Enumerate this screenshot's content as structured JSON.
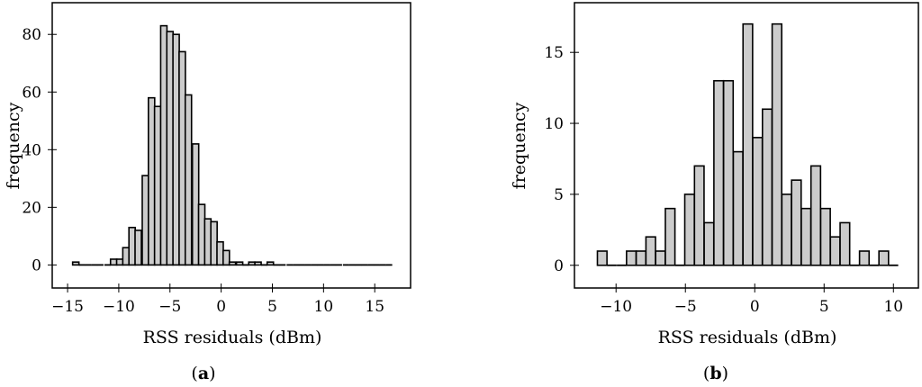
{
  "chart_data": [
    {
      "type": "bar",
      "panel_label": "a",
      "xlabel": "RSS residuals (dBm)",
      "ylabel": "frequency",
      "xlim": [
        -16.5,
        18.5
      ],
      "ylim": [
        -8,
        91
      ],
      "xticks": [
        -15,
        -10,
        -5,
        0,
        5,
        10,
        15
      ],
      "yticks": [
        0,
        20,
        40,
        60,
        80
      ],
      "xtick_labels": [
        "−15",
        "−10",
        "−5",
        "0",
        "5",
        "10",
        "15"
      ],
      "ytick_labels": [
        "0",
        "20",
        "40",
        "60",
        "80"
      ],
      "bin_width": 0.615,
      "bar_fill": "#cccccc",
      "bar_stroke": "#000000",
      "x": [
        -14.2,
        -13.6,
        -13.0,
        -12.4,
        -11.8,
        -11.1,
        -10.5,
        -9.9,
        -9.3,
        -8.7,
        -8.1,
        -7.4,
        -6.8,
        -6.2,
        -5.6,
        -5.0,
        -4.4,
        -3.8,
        -3.2,
        -2.5,
        -1.9,
        -1.3,
        -0.7,
        -0.1,
        0.5,
        1.1,
        1.8,
        2.4,
        3.0,
        3.6,
        4.2,
        4.8,
        5.4,
        6.0,
        6.7,
        7.3,
        7.9,
        8.5,
        9.1,
        9.7,
        10.3,
        10.9,
        11.5,
        12.2,
        12.8,
        13.4,
        14.0,
        14.6,
        15.2,
        15.8,
        16.4
      ],
      "values": [
        1,
        0,
        0,
        0,
        0,
        0,
        2,
        2,
        6,
        13,
        12,
        31,
        58,
        55,
        83,
        81,
        80,
        74,
        59,
        42,
        21,
        16,
        15,
        8,
        5,
        1,
        1,
        0,
        1,
        1,
        0,
        1,
        0,
        0,
        0,
        0,
        0,
        0,
        0,
        0,
        0,
        0,
        0,
        0,
        0,
        0,
        0,
        0,
        0,
        0,
        0
      ],
      "grid": false
    },
    {
      "type": "bar",
      "panel_label": "b",
      "xlabel": "RSS residuals (dBm)",
      "ylabel": "frequency",
      "xlim": [
        -13.0,
        11.8
      ],
      "ylim": [
        -1.6,
        18.5
      ],
      "xticks": [
        -10,
        -5,
        0,
        5,
        10
      ],
      "yticks": [
        0,
        5,
        10,
        15
      ],
      "xtick_labels": [
        "−10",
        "−5",
        "0",
        "5",
        "10"
      ],
      "ytick_labels": [
        "0",
        "5",
        "10",
        "15"
      ],
      "bin_width": 0.69,
      "bar_fill": "#cccccc",
      "bar_stroke": "#000000",
      "x": [
        -11.0,
        -10.3,
        -9.6,
        -8.9,
        -8.2,
        -7.5,
        -6.8,
        -6.1,
        -5.4,
        -4.7,
        -4.0,
        -3.3,
        -2.6,
        -1.9,
        -1.2,
        -0.5,
        0.2,
        0.9,
        1.6,
        2.3,
        3.0,
        3.7,
        4.4,
        5.1,
        5.8,
        6.5,
        7.2,
        7.9,
        8.6,
        9.3,
        10.0
      ],
      "values": [
        1,
        0,
        0,
        1,
        1,
        2,
        1,
        4,
        0,
        5,
        7,
        3,
        13,
        13,
        8,
        17,
        9,
        11,
        17,
        5,
        6,
        4,
        7,
        4,
        2,
        3,
        0,
        1,
        0,
        1,
        0
      ],
      "grid": false
    }
  ]
}
